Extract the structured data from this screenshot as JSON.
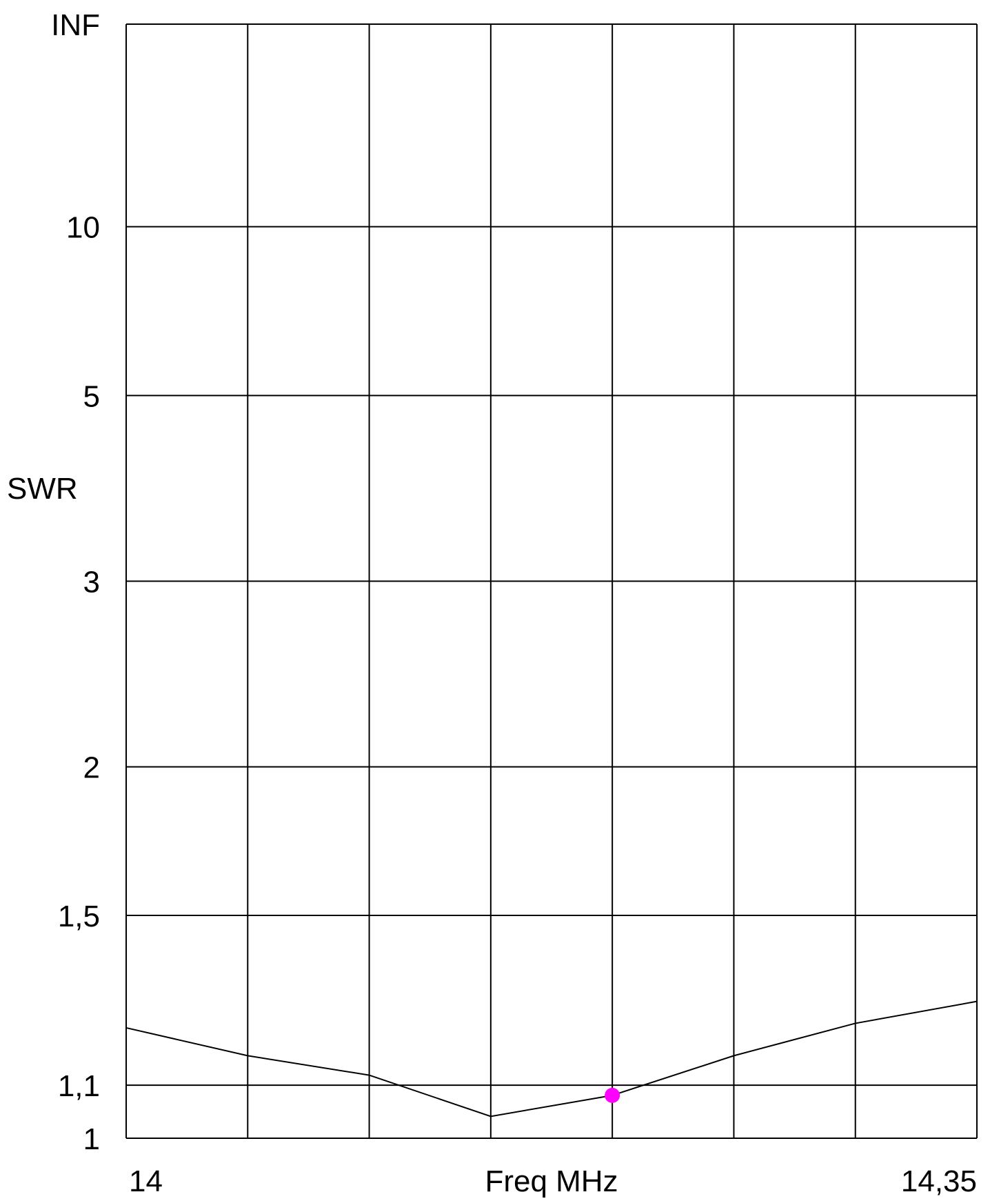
{
  "chart_data": {
    "type": "line",
    "title": "",
    "xlabel": "Freq MHz",
    "ylabel": "SWR",
    "xlim": [
      14,
      14.35
    ],
    "x_tick_labels": [
      {
        "value": 14,
        "label": "14"
      },
      {
        "value": 14.35,
        "label": "14,35"
      }
    ],
    "y_scale": "reflection-coefficient",
    "y_tick_labels": [
      {
        "value": 1,
        "label": "1"
      },
      {
        "value": 1.1,
        "label": "1,1"
      },
      {
        "value": 1.5,
        "label": "1,5"
      },
      {
        "value": 2,
        "label": "2"
      },
      {
        "value": 3,
        "label": "3"
      },
      {
        "value": 5,
        "label": "5"
      },
      {
        "value": 10,
        "label": "10"
      },
      {
        "value": "INF",
        "label": "INF"
      }
    ],
    "x_grid_divisions": 7,
    "grid": true,
    "series": [
      {
        "x": [
          14,
          14.05,
          14.1,
          14.15,
          14.2,
          14.25,
          14.3,
          14.35
        ],
        "y": [
          1.22,
          1.16,
          1.12,
          1.04,
          1.08,
          1.16,
          1.23,
          1.28
        ],
        "color": "#000000"
      }
    ],
    "marker": {
      "x": 14.2,
      "y": 1.08,
      "color": "#ff00ff"
    }
  }
}
